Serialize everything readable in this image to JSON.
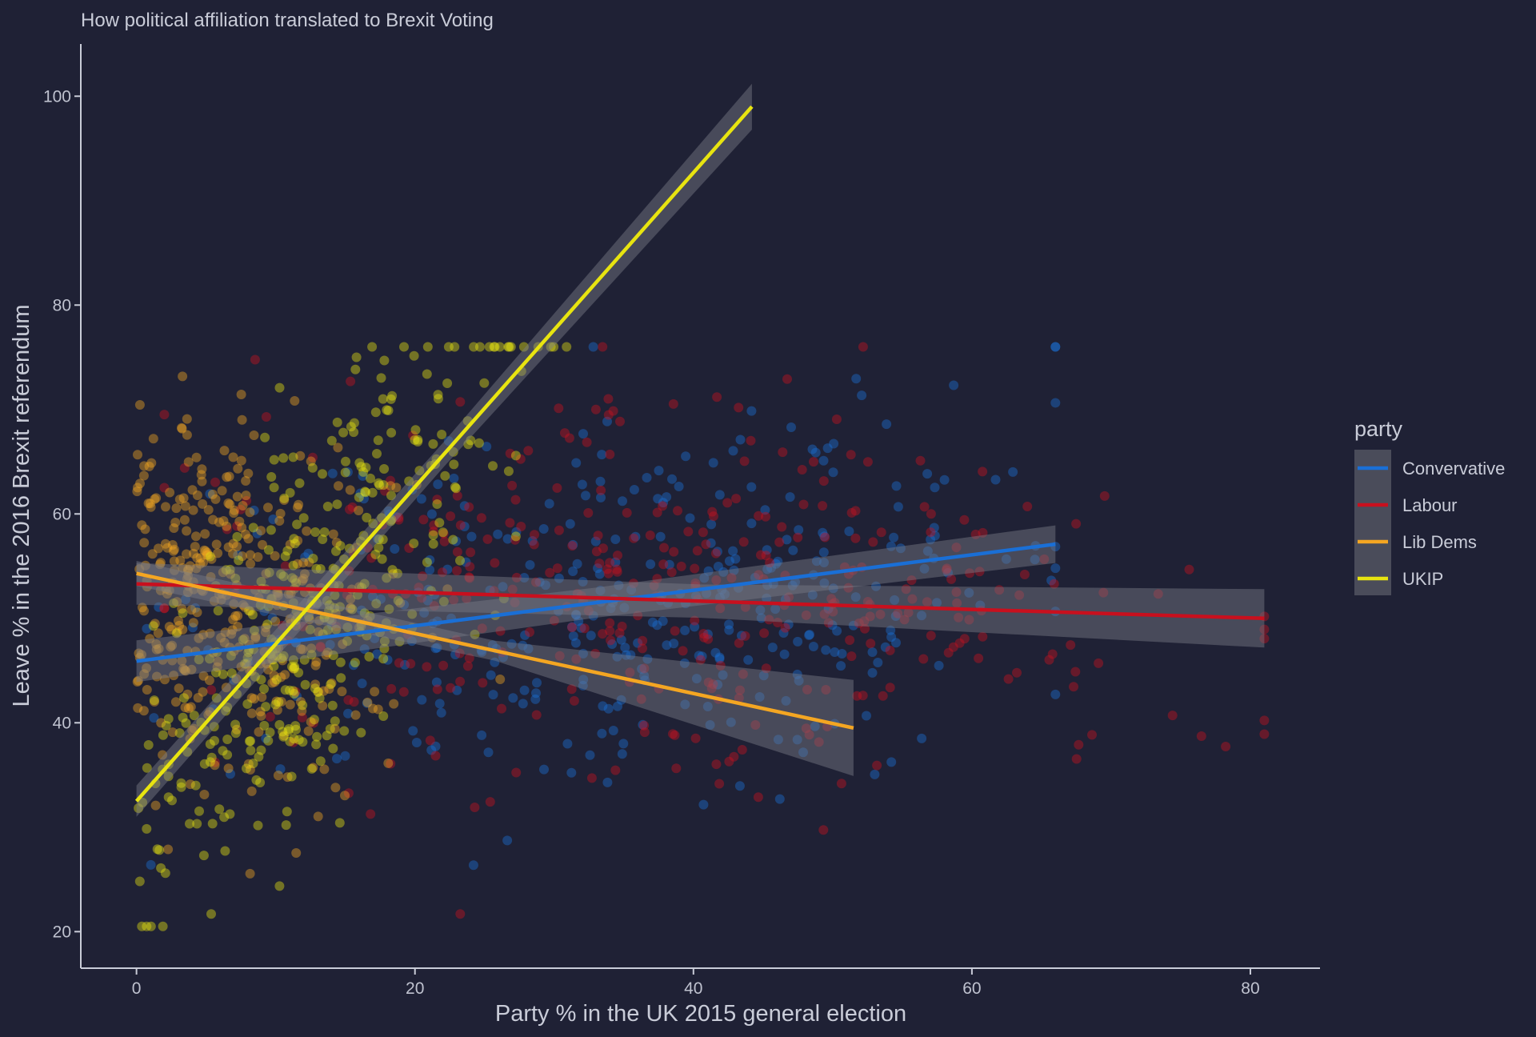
{
  "chart_data": {
    "type": "scatter",
    "title": "How political affiliation translated to Brexit Voting",
    "xlabel": "Party % in the UK 2015 general election",
    "ylabel": "Leave % in the 2016 Brexit referendum",
    "xlim": [
      -4,
      85
    ],
    "ylim": [
      16.5,
      105
    ],
    "xticks": [
      0,
      20,
      40,
      60,
      80
    ],
    "yticks": [
      20,
      40,
      60,
      80,
      100
    ],
    "grid": false,
    "legend_title": "party",
    "legend_position": "right",
    "series": [
      {
        "name": "Convervative",
        "color": "#1a6fd6",
        "x_range": [
          0,
          66
        ],
        "trend": [
          [
            0,
            45.9
          ],
          [
            66,
            57.1
          ]
        ],
        "band_halfwidth": [
          2.0,
          1.8
        ],
        "cloud": {
          "x_mean": 35,
          "x_sd": 16,
          "x_min": 0,
          "x_max": 66,
          "y_mean": 52,
          "y_sd": 11
        },
        "n_points": 380
      },
      {
        "name": "Labour",
        "color": "#c8101e",
        "x_range": [
          0,
          81
        ],
        "trend": [
          [
            0,
            53.3
          ],
          [
            81,
            50.0
          ]
        ],
        "band_halfwidth": [
          2.0,
          2.8
        ],
        "cloud": {
          "x_mean": 38,
          "x_sd": 17,
          "x_min": 2,
          "x_max": 81,
          "y_mean": 53,
          "y_sd": 11
        },
        "n_points": 380
      },
      {
        "name": "Lib Dems",
        "color": "#f4a622",
        "x_range": [
          0,
          51.5
        ],
        "trend": [
          [
            0,
            54.3
          ],
          [
            51.5,
            39.5
          ]
        ],
        "band_halfwidth": [
          1.2,
          4.6
        ],
        "cloud": {
          "x_mean": 6,
          "x_sd": 6,
          "x_min": 0,
          "x_max": 40,
          "y_mean": 52,
          "y_sd": 12
        },
        "n_points": 380
      },
      {
        "name": "UKIP",
        "color": "#e8e410",
        "x_range": [
          0,
          44.2
        ],
        "trend": [
          [
            0,
            32.5
          ],
          [
            44.2,
            99.0
          ]
        ],
        "band_halfwidth": [
          1.5,
          2.2
        ],
        "cloud": {
          "x_mean": 13,
          "x_sd": 7,
          "x_min": 0,
          "x_max": 45,
          "y_mean": 52,
          "y_sd": 12
        },
        "n_points": 380
      }
    ]
  }
}
